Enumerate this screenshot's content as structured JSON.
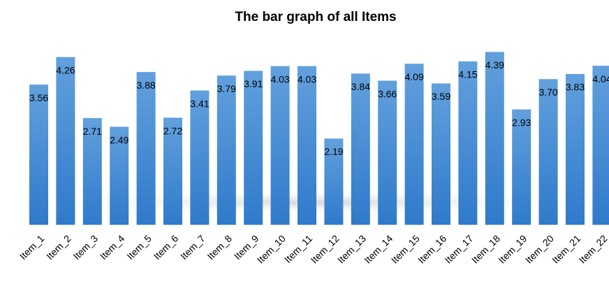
{
  "chart_data": {
    "type": "bar",
    "title": "The bar graph of all Items",
    "categories": [
      "Item_1",
      "Item_2",
      "Item_3",
      "Item_4",
      "Item_5",
      "Item_6",
      "Item_7",
      "Item_8",
      "Item_9",
      "Item_10",
      "Item_11",
      "Item_12",
      "Item_13",
      "Item_14",
      "Item_15",
      "Item_16",
      "Item_17",
      "Item_18",
      "Item_19",
      "Item_20",
      "Item_21",
      "Item_22"
    ],
    "values": [
      3.56,
      4.26,
      2.71,
      2.49,
      3.88,
      2.72,
      3.41,
      3.79,
      3.91,
      4.03,
      4.03,
      2.19,
      3.84,
      3.66,
      4.09,
      3.59,
      4.15,
      4.39,
      2.93,
      3.7,
      3.83,
      4.04
    ],
    "value_labels": [
      "3.56",
      "4.26",
      "2.71",
      "2.49",
      "3.88",
      "2.72",
      "3.41",
      "3.79",
      "3.91",
      "4.03",
      "4.03",
      "2.19",
      "3.84",
      "3.66",
      "4.09",
      "3.59",
      "4.15",
      "4.39",
      "2.93",
      "3.70",
      "3.83",
      "4.04"
    ],
    "color": "#3f87d3",
    "ylim": [
      0,
      5
    ]
  }
}
